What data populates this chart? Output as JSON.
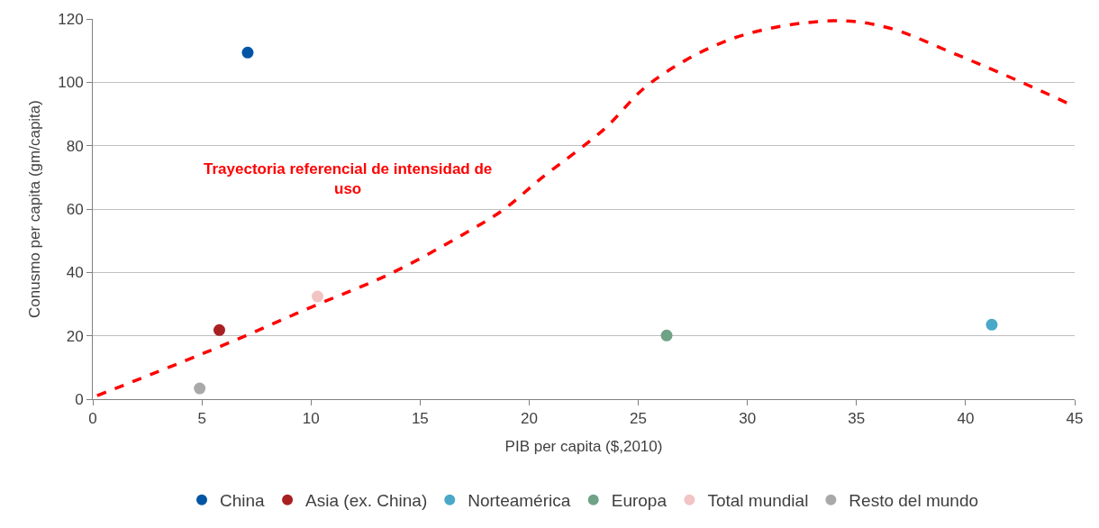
{
  "chart_data": {
    "type": "scatter",
    "xlabel": "PIB per capita ($,2010)",
    "ylabel": "Conusmo per capita (gm/capita)",
    "xlim": [
      0,
      45
    ],
    "xticks": [
      0,
      5,
      10,
      15,
      20,
      25,
      30,
      35,
      40,
      45
    ],
    "ylim": [
      0,
      120
    ],
    "yticks": [
      0,
      20,
      40,
      60,
      80,
      100,
      120
    ],
    "grid": "y",
    "legend": "bottom",
    "marker": "circle",
    "series": [
      {
        "name": "China",
        "color": "#0055a5",
        "x": [
          7.1
        ],
        "values": [
          109.4
        ]
      },
      {
        "name": "Asia (ex. China)",
        "color": "#a92023",
        "x": [
          5.8
        ],
        "values": [
          21.8
        ]
      },
      {
        "name": "Norteamérica",
        "color": "#4aa8c8",
        "x": [
          41.2
        ],
        "values": [
          23.5
        ]
      },
      {
        "name": "Europa",
        "color": "#6fa286",
        "x": [
          26.3
        ],
        "values": [
          20.1
        ]
      },
      {
        "name": "Total mundial",
        "color": "#f2c4c4",
        "x": [
          10.3
        ],
        "values": [
          32.4
        ]
      },
      {
        "name": "Resto del mundo",
        "color": "#a9a9a9",
        "x": [
          4.9
        ],
        "values": [
          3.4
        ]
      },
      {
        "type": "line",
        "color": "#ff0000",
        "line_style": "dashed",
        "marker": "none",
        "x": [
          0.2,
          5.9,
          10.0,
          13.7,
          16.9,
          18.8,
          20.5,
          23.4,
          25.6,
          29.4,
          33.9,
          36.4,
          39.6,
          42.7,
          44.8
        ],
        "values": [
          1.1,
          16.8,
          29,
          39.8,
          51.7,
          59.7,
          69.4,
          85,
          100,
          114,
          119.4,
          117.3,
          108.7,
          99.6,
          93
        ]
      }
    ],
    "annotations": [
      "Trayectoria referencial de intensidad de uso"
    ]
  }
}
